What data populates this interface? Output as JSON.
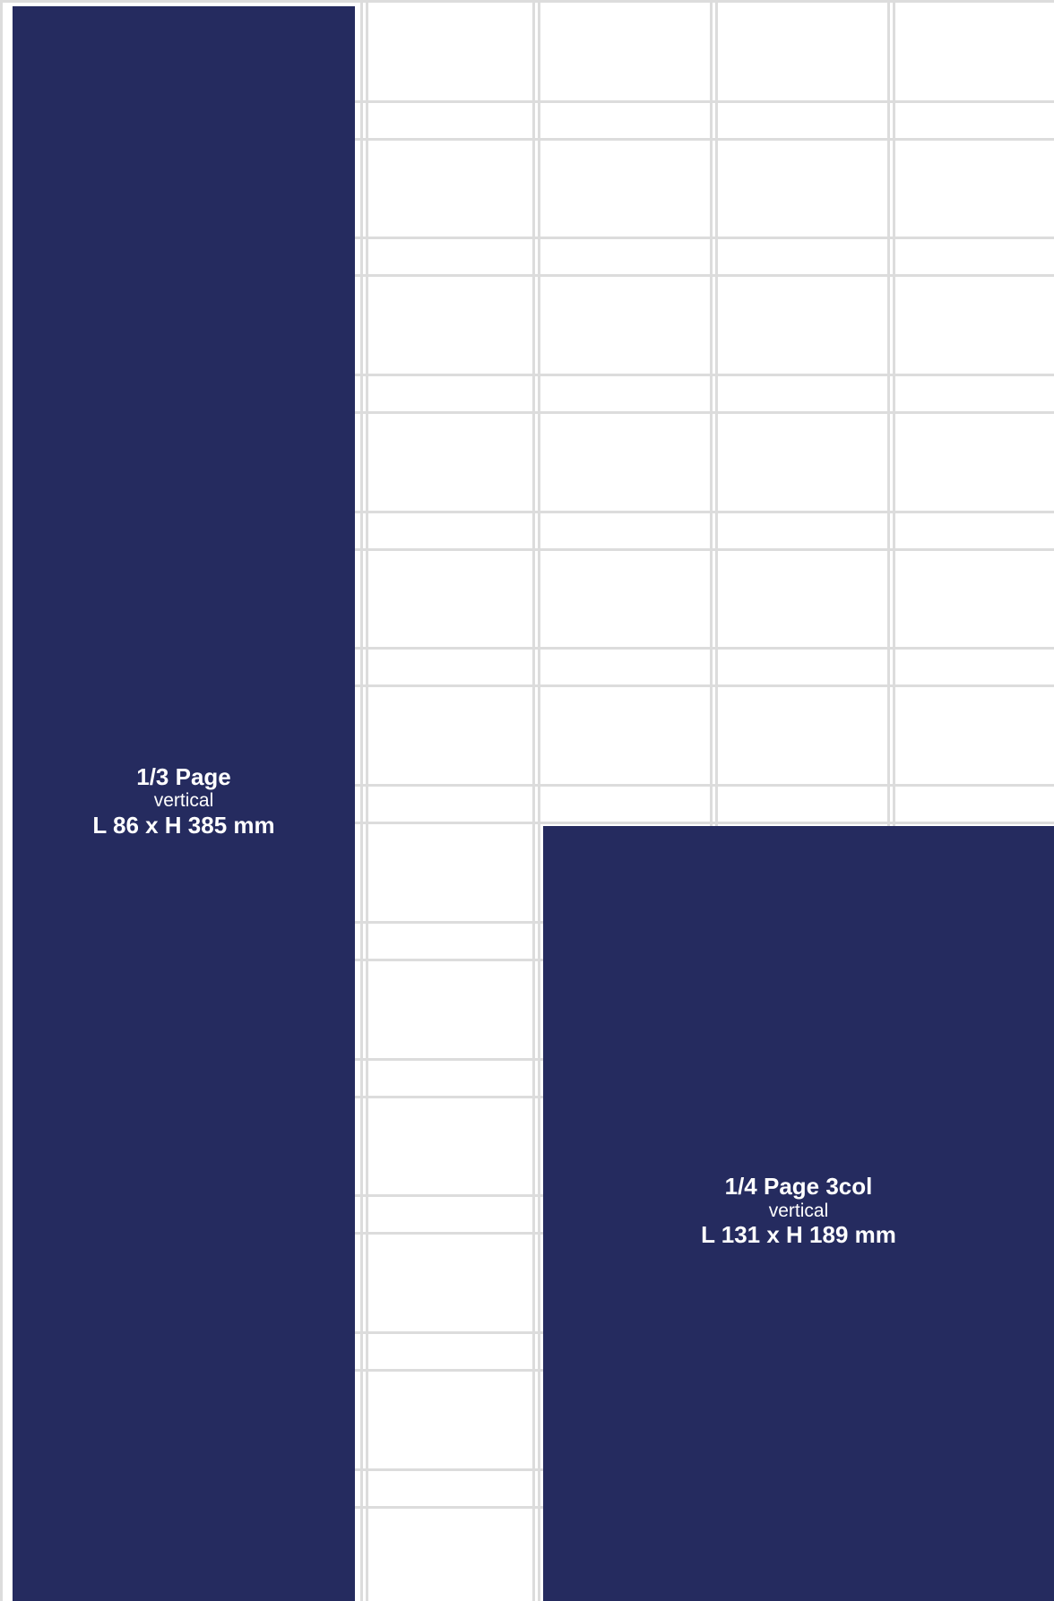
{
  "ad_blocks": {
    "third_page": {
      "name": "1/3 Page",
      "orientation": "vertical",
      "dimensions": "L 86 x H 385 mm"
    },
    "quarter_page_3col": {
      "name": "1/4 Page 3col",
      "orientation": "vertical",
      "dimensions": "L 131 x H 189 mm"
    }
  },
  "colors": {
    "block_fill": "#252b5f",
    "block_text": "#ffffff",
    "grid_line": "#dcdcdc",
    "background": "#ffffff"
  }
}
